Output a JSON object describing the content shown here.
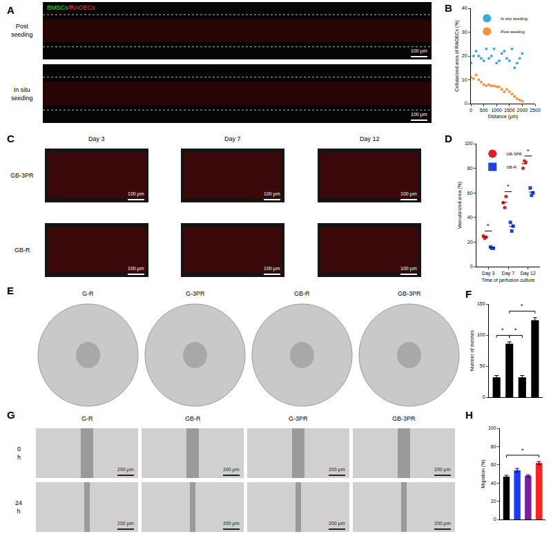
{
  "chart_data": [
    {
      "title": "B",
      "type": "scatter",
      "x": [
        0,
        100,
        200,
        300,
        400,
        500,
        600,
        700,
        800,
        900,
        1000,
        1100,
        1200,
        1300,
        1400,
        1500,
        1600,
        1700,
        1800,
        1900,
        2000
      ],
      "series": [
        {
          "name": "In situ seeding",
          "color": "#3fa7e0",
          "marker": "circle",
          "values": [
            17,
            20,
            22,
            20,
            19,
            18,
            23,
            19,
            20,
            23,
            17,
            18,
            21,
            22,
            19,
            18,
            23,
            15,
            17,
            19,
            21
          ]
        },
        {
          "name": "Post seeding",
          "color": "#f5923e",
          "marker": "circle",
          "values": [
            11,
            10.5,
            12,
            10,
            9,
            8,
            7.5,
            8,
            7.5,
            7.5,
            7,
            7,
            6,
            5,
            6,
            5,
            4,
            3,
            2,
            1.5,
            1
          ]
        }
      ],
      "xlabel": "Distance (μm)",
      "ylabel": "Cellularized area of RAOECs (%)",
      "xlim": [
        0,
        2500
      ],
      "xticks": [
        0,
        500,
        1000,
        1500,
        2000,
        2500
      ],
      "ylim": [
        0,
        40
      ],
      "yticks": [
        0,
        10,
        20,
        30,
        40
      ],
      "legend": "top-left",
      "grid": false
    },
    {
      "title": "D",
      "type": "strip",
      "categories": [
        "Day 3",
        "Day 7",
        "Day 12"
      ],
      "series": [
        {
          "name": "GB-3PR",
          "color": "#e02020",
          "marker": "circle",
          "values": [
            [
              25,
              23,
              24
            ],
            [
              52,
              48,
              57
            ],
            [
              80,
              86,
              85
            ]
          ]
        },
        {
          "name": "GB-R",
          "color": "#2040e0",
          "marker": "square",
          "values": [
            [
              16,
              15,
              15
            ],
            [
              36,
              29,
              33
            ],
            [
              64,
              58,
              60
            ]
          ]
        }
      ],
      "xlabel": "Time of perfusion culture",
      "ylabel": "Vascularized area (%)",
      "ylim": [
        0,
        100
      ],
      "yticks": [
        0,
        20,
        40,
        60,
        80,
        100
      ],
      "legend": "top-left",
      "grid": false,
      "annotations": [
        {
          "text": "*",
          "category": "Day 3"
        },
        {
          "text": "*",
          "category": "Day 7"
        },
        {
          "text": "*",
          "category": "Day 12"
        }
      ]
    },
    {
      "title": "F",
      "type": "bar",
      "categories": [
        null,
        null,
        null,
        null
      ],
      "values": [
        32,
        86,
        32,
        124
      ],
      "errors": [
        3,
        3,
        3,
        4
      ],
      "color": "#000000",
      "ylabel": "Number of meshes",
      "ylim": [
        0,
        150
      ],
      "yticks": [
        0,
        50,
        100,
        150
      ],
      "tick_labels": "y",
      "grid": false,
      "significance": [
        {
          "from": 0,
          "to": 1,
          "text": "*"
        },
        {
          "from": 1,
          "to": 2,
          "text": "*"
        },
        {
          "from": 1,
          "to": 3,
          "text": "*"
        }
      ]
    },
    {
      "title": "H",
      "type": "bar",
      "categories": [
        null,
        null,
        null,
        null
      ],
      "values": [
        47,
        54,
        48,
        62
      ],
      "errors": [
        1.5,
        2,
        1,
        1.5
      ],
      "colors": [
        "#000000",
        "#1a3cff",
        "#7b1fa2",
        "#ff2020"
      ],
      "ylabel": "Migration (%)",
      "ylim": [
        0,
        100
      ],
      "yticks": [
        0,
        20,
        40,
        60,
        80,
        100
      ],
      "tick_labels": "y",
      "grid": false,
      "significance": [
        {
          "from": 0,
          "to": 3,
          "text": "*"
        }
      ]
    }
  ],
  "image_panels": [
    {
      "title": "A",
      "channels": [
        {
          "text": "BMSCs",
          "color": "#33dd33"
        },
        {
          "text": "/RAOECs",
          "color": "#ff3030"
        }
      ],
      "rows": [
        "Post seeding",
        "In situ seeding"
      ],
      "scale_bar": "100 μm"
    },
    {
      "title": "C",
      "columns": [
        "Day 3",
        "Day 7",
        "Day 12"
      ],
      "rows": [
        "GB-3PR",
        "GB-R"
      ],
      "scale_bar": "100 μm"
    },
    {
      "title": "E",
      "columns": [
        "G-R",
        "G-3PR",
        "GB-R",
        "GB-3PR"
      ]
    },
    {
      "title": "G",
      "columns": [
        "G-R",
        "GB-R",
        "G-3PR",
        "GB-3PR"
      ],
      "rows": [
        "0 h",
        "24 h"
      ],
      "scale_bar": "200 μm"
    }
  ]
}
